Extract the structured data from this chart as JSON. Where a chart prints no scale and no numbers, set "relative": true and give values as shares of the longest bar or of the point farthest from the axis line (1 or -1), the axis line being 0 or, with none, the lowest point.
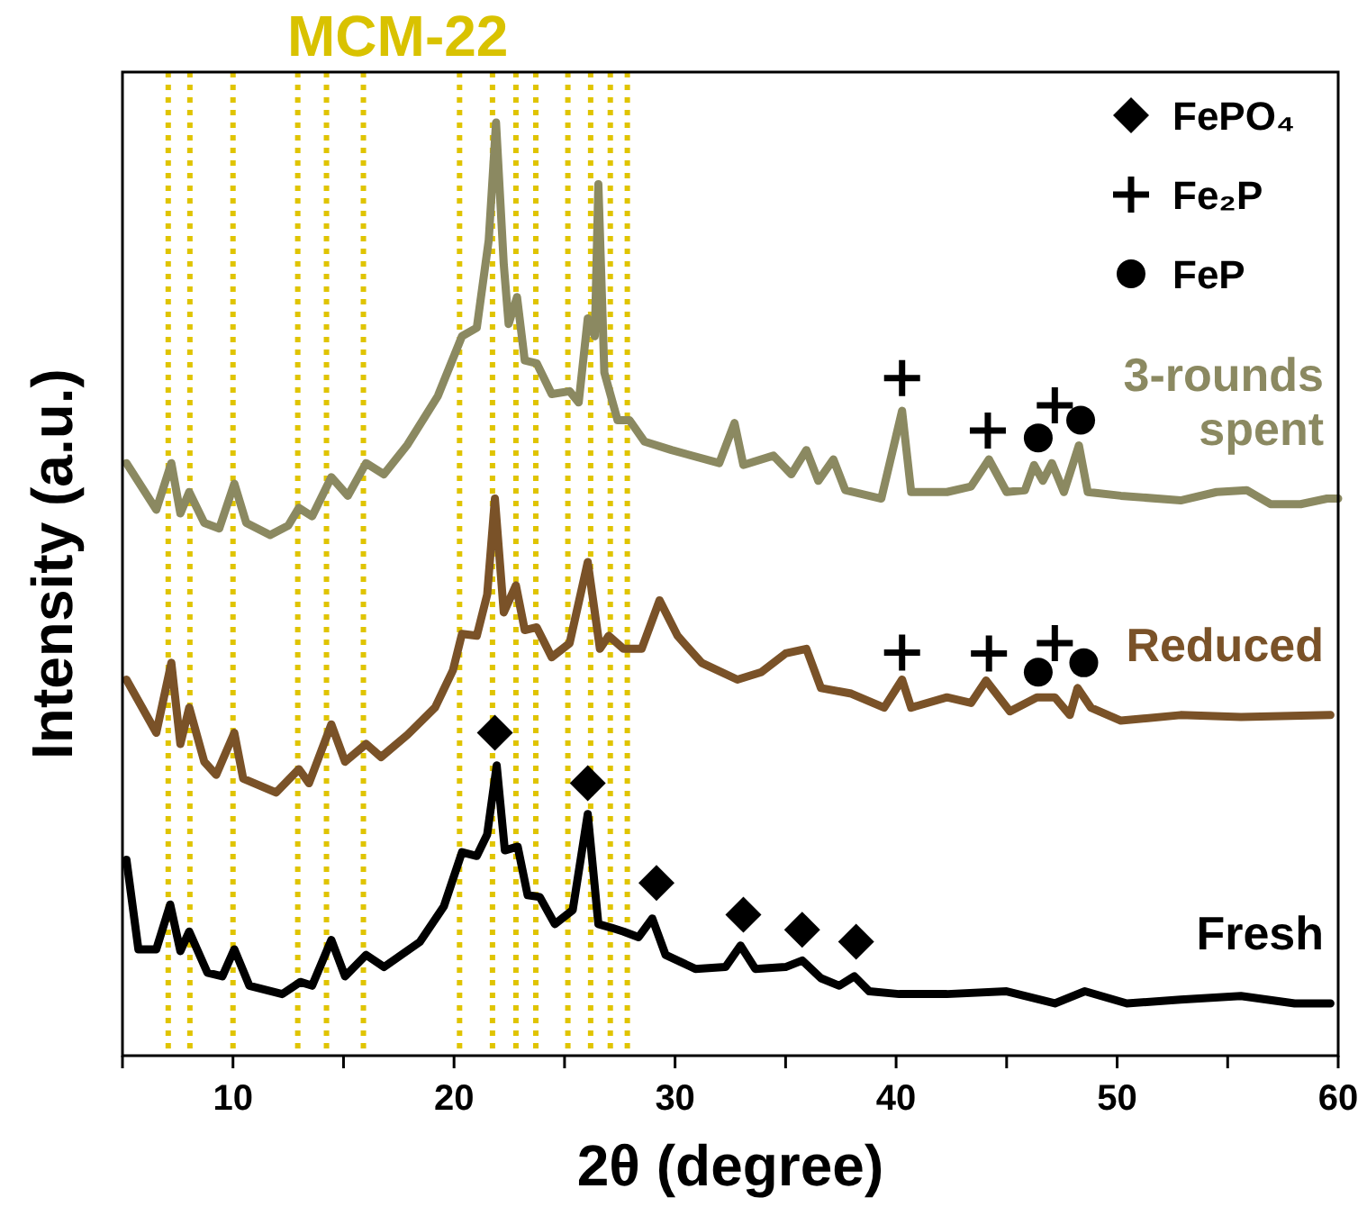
{
  "chart_data": {
    "type": "line",
    "relative": true,
    "xlabel": "2θ (degree)",
    "ylabel": "Intensity (a.u.)",
    "xlim": [
      5,
      60
    ],
    "xticks": [
      {
        "value": 5,
        "label": null
      },
      10,
      {
        "value": 15,
        "label": null
      },
      20,
      {
        "value": 25,
        "label": null
      },
      30,
      {
        "value": 35,
        "label": null
      },
      40,
      {
        "value": 45,
        "label": null
      },
      50,
      {
        "value": 55,
        "label": null
      },
      60
    ],
    "tick_labels": "x",
    "grid": false,
    "legend": "top right",
    "marker": "none",
    "line_style": "solid",
    "annotations": [
      "MCM-22"
    ],
    "ref_lines": [
      {
        "axis": "x",
        "value": 7.07,
        "label": null,
        "color": "#e0c400",
        "line_style": "dotted"
      },
      {
        "axis": "x",
        "value": 8.05,
        "label": null,
        "color": "#e0c400",
        "line_style": "dotted"
      },
      {
        "axis": "x",
        "value": 10.0,
        "label": null,
        "color": "#e0c400",
        "line_style": "dotted"
      },
      {
        "axis": "x",
        "value": 12.93,
        "label": null,
        "color": "#e0c400",
        "line_style": "dotted"
      },
      {
        "axis": "x",
        "value": 14.23,
        "label": null,
        "color": "#e0c400",
        "line_style": "dotted"
      },
      {
        "axis": "x",
        "value": 15.9,
        "label": null,
        "color": "#e0c400",
        "line_style": "dotted"
      },
      {
        "axis": "x",
        "value": 20.25,
        "label": null,
        "color": "#e0c400",
        "line_style": "dotted"
      },
      {
        "axis": "x",
        "value": 21.74,
        "label": null,
        "color": "#e0c400",
        "line_style": "dotted"
      },
      {
        "axis": "x",
        "value": 22.8,
        "label": null,
        "color": "#e0c400",
        "line_style": "dotted"
      },
      {
        "axis": "x",
        "value": 23.7,
        "label": null,
        "color": "#e0c400",
        "line_style": "dotted"
      },
      {
        "axis": "x",
        "value": 25.15,
        "label": null,
        "color": "#e0c400",
        "line_style": "dotted"
      },
      {
        "axis": "x",
        "value": 26.18,
        "label": null,
        "color": "#e0c400",
        "line_style": "dotted"
      },
      {
        "axis": "x",
        "value": 27.07,
        "label": null,
        "color": "#e0c400",
        "line_style": "dotted"
      },
      {
        "axis": "x",
        "value": 27.84,
        "label": null,
        "color": "#e0c400",
        "line_style": "dotted"
      }
    ],
    "series": [
      {
        "name": "3-rounds spent",
        "color": "#8b8961",
        "x": [
          5.18,
          6.53,
          7.21,
          7.62,
          8.02,
          8.7,
          9.38,
          10.06,
          10.6,
          11.68,
          12.5,
          12.98,
          13.58,
          14.45,
          15.2,
          16.02,
          16.83,
          17.9,
          19.27,
          20.36,
          21.03,
          21.57,
          21.9,
          22.25,
          22.47,
          22.85,
          23.2,
          23.74,
          24.42,
          25.23,
          25.64,
          26.05,
          26.37,
          26.53,
          26.8,
          27.4,
          27.94,
          28.62,
          29.84,
          32.0,
          32.69,
          33.09,
          34.45,
          35.26,
          35.94,
          36.48,
          37.16,
          37.7,
          39.33,
          40.27,
          40.68,
          42.3,
          43.39,
          44.2,
          45.0,
          45.83,
          46.24,
          46.64,
          47.05,
          47.59,
          48.27,
          48.67,
          50.17,
          52.87,
          54.5,
          55.86,
          56.94,
          58.3,
          59.5,
          60
        ],
        "values": [
          0.635,
          0.585,
          0.635,
          0.581,
          0.604,
          0.571,
          0.565,
          0.613,
          0.571,
          0.558,
          0.568,
          0.587,
          0.578,
          0.62,
          0.6,
          0.635,
          0.623,
          0.655,
          0.707,
          0.771,
          0.78,
          0.874,
          1.0,
          0.848,
          0.784,
          0.813,
          0.745,
          0.742,
          0.709,
          0.712,
          0.7,
          0.79,
          0.771,
          0.934,
          0.732,
          0.681,
          0.681,
          0.658,
          0.649,
          0.635,
          0.678,
          0.633,
          0.643,
          0.623,
          0.649,
          0.616,
          0.639,
          0.606,
          0.597,
          0.691,
          0.604,
          0.604,
          0.61,
          0.639,
          0.604,
          0.606,
          0.633,
          0.616,
          0.635,
          0.604,
          0.654,
          0.604,
          0.6,
          0.595,
          0.604,
          0.606,
          0.591,
          0.591,
          0.597,
          0.597
        ]
      },
      {
        "name": "Reduced",
        "color": "#7a5228",
        "x": [
          5.18,
          6.53,
          7.21,
          7.62,
          8.02,
          8.7,
          9.24,
          10.06,
          10.46,
          11.95,
          12.98,
          13.44,
          14.45,
          15.07,
          16.02,
          16.7,
          17.9,
          19.14,
          19.95,
          20.36,
          21.03,
          21.5,
          21.85,
          22.25,
          22.8,
          23.2,
          23.74,
          24.42,
          25.23,
          26.05,
          26.6,
          27.0,
          27.67,
          28.49,
          29.3,
          30.11,
          31.2,
          32.82,
          33.9,
          35.0,
          35.94,
          36.6,
          37.97,
          39.46,
          40.27,
          40.68,
          42.3,
          43.39,
          44.07,
          45.15,
          46.37,
          47.18,
          47.86,
          48.21,
          48.81,
          50.17,
          52.87,
          55.6,
          59.65
        ],
        "values": [
          0.403,
          0.346,
          0.421,
          0.334,
          0.373,
          0.315,
          0.301,
          0.346,
          0.297,
          0.282,
          0.307,
          0.292,
          0.355,
          0.315,
          0.334,
          0.32,
          0.344,
          0.373,
          0.413,
          0.452,
          0.45,
          0.494,
          0.597,
          0.475,
          0.504,
          0.456,
          0.459,
          0.427,
          0.442,
          0.529,
          0.436,
          0.45,
          0.436,
          0.436,
          0.488,
          0.45,
          0.421,
          0.403,
          0.411,
          0.431,
          0.436,
          0.394,
          0.388,
          0.373,
          0.403,
          0.373,
          0.384,
          0.378,
          0.402,
          0.369,
          0.384,
          0.384,
          0.365,
          0.394,
          0.373,
          0.359,
          0.365,
          0.363,
          0.365
        ]
      },
      {
        "name": "Fresh",
        "color": "#000000",
        "x": [
          5.18,
          5.72,
          6.53,
          7.16,
          7.62,
          8.02,
          8.84,
          9.52,
          10.06,
          10.74,
          12.23,
          13.04,
          13.58,
          14.45,
          15.07,
          16.02,
          16.83,
          18.46,
          19.54,
          20.36,
          21.03,
          21.5,
          21.93,
          22.3,
          22.88,
          23.33,
          23.88,
          24.56,
          25.37,
          26.05,
          26.53,
          27.13,
          27.67,
          28.35,
          28.97,
          29.57,
          30.92,
          32.28,
          32.96,
          33.63,
          35.0,
          35.75,
          36.6,
          37.43,
          38.11,
          38.78,
          40.14,
          42.3,
          45.0,
          47.18,
          48.54,
          50.44,
          52.87,
          55.6,
          58.03,
          59.65
        ],
        "values": [
          0.21,
          0.114,
          0.114,
          0.162,
          0.112,
          0.133,
          0.089,
          0.085,
          0.114,
          0.075,
          0.066,
          0.079,
          0.075,
          0.124,
          0.085,
          0.108,
          0.095,
          0.122,
          0.16,
          0.218,
          0.214,
          0.237,
          0.311,
          0.22,
          0.224,
          0.172,
          0.17,
          0.141,
          0.156,
          0.259,
          0.141,
          0.137,
          0.133,
          0.127,
          0.147,
          0.108,
          0.093,
          0.095,
          0.118,
          0.093,
          0.095,
          0.102,
          0.083,
          0.075,
          0.085,
          0.069,
          0.066,
          0.066,
          0.069,
          0.056,
          0.069,
          0.056,
          0.06,
          0.064,
          0.056,
          0.056
        ]
      },
      {
        "name": "FePO₄",
        "color": "#000000",
        "type": "scatter",
        "marker": "diamond",
        "x": [
          21.85,
          26.05,
          29.16,
          33.09,
          35.75,
          38.19
        ],
        "values": [
          0.346,
          0.292,
          0.185,
          0.151,
          0.135,
          0.122
        ]
      },
      {
        "name": "Fe₂P",
        "color": "#000000",
        "type": "scatter",
        "marker": "cross",
        "x": [
          40.27,
          44.15,
          47.18,
          40.27,
          44.2,
          47.18
        ],
        "values": [
          0.726,
          0.67,
          0.697,
          0.432,
          0.431,
          0.442
        ]
      },
      {
        "name": "FeP",
        "color": "#000000",
        "type": "scatter",
        "marker": "circle",
        "x": [
          46.43,
          48.35,
          46.43,
          48.49
        ],
        "values": [
          0.662,
          0.681,
          0.411,
          0.421
        ]
      }
    ]
  }
}
